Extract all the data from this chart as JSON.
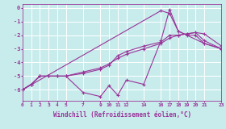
{
  "xlabel": "Windchill (Refroidissement éolien,°C)",
  "background_color": "#c8ecec",
  "line_color": "#993399",
  "grid_color": "#ffffff",
  "xlim": [
    0,
    23
  ],
  "ylim": [
    -6.8,
    0.3
  ],
  "xticks": [
    0,
    1,
    2,
    3,
    4,
    5,
    7,
    9,
    10,
    11,
    12,
    14,
    16,
    17,
    18,
    19,
    20,
    21,
    23
  ],
  "yticks": [
    0,
    -1,
    -2,
    -3,
    -4,
    -5,
    -6
  ],
  "line1_x": [
    0,
    1,
    2,
    3,
    4,
    5,
    7,
    9,
    10,
    11,
    12,
    14,
    16,
    17,
    18,
    19,
    20,
    21,
    23
  ],
  "line1_y": [
    -6.0,
    -5.6,
    -5.0,
    -5.0,
    -5.0,
    -5.0,
    -6.2,
    -6.5,
    -5.7,
    -6.4,
    -5.3,
    -5.6,
    -2.4,
    -0.1,
    -1.7,
    -2.0,
    -2.0,
    -2.6,
    -3.0
  ],
  "line2_x": [
    0,
    16,
    17,
    18,
    21,
    23
  ],
  "line2_y": [
    -6.0,
    -0.2,
    -0.4,
    -1.7,
    -2.6,
    -3.0
  ],
  "line3_x": [
    0,
    1,
    2,
    3,
    4,
    5,
    7,
    9,
    10,
    11,
    12,
    14,
    16,
    17,
    18,
    19,
    20,
    21,
    23
  ],
  "line3_y": [
    -6.0,
    -5.6,
    -5.0,
    -5.0,
    -5.0,
    -5.0,
    -4.7,
    -4.4,
    -4.1,
    -3.7,
    -3.4,
    -3.0,
    -2.6,
    -2.2,
    -2.0,
    -1.9,
    -1.8,
    -1.9,
    -2.8
  ],
  "line4_x": [
    0,
    1,
    2,
    3,
    4,
    5,
    7,
    9,
    10,
    11,
    12,
    14,
    16,
    17,
    18,
    19,
    20,
    21,
    23
  ],
  "line4_y": [
    -6.0,
    -5.6,
    -5.0,
    -5.0,
    -5.0,
    -5.0,
    -4.8,
    -4.5,
    -4.2,
    -3.5,
    -3.2,
    -2.8,
    -2.5,
    -2.0,
    -2.0,
    -1.9,
    -1.8,
    -2.4,
    -3.0
  ]
}
